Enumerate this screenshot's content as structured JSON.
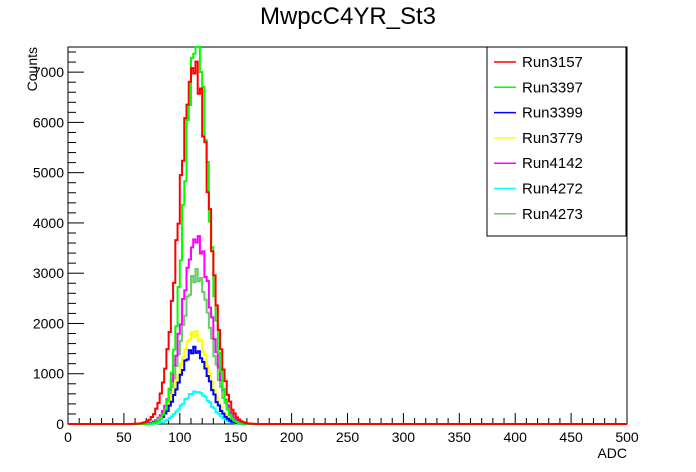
{
  "chart_data": {
    "type": "line",
    "title": "MwpcC4YR_St3",
    "xlabel": "ADC",
    "ylabel": "Counts",
    "xlim": [
      0,
      500
    ],
    "ylim": [
      0,
      7500
    ],
    "x_ticks": [
      0,
      50,
      100,
      150,
      200,
      250,
      300,
      350,
      400,
      450,
      500
    ],
    "y_ticks": [
      0,
      1000,
      2000,
      3000,
      4000,
      5000,
      6000,
      7000
    ],
    "grid": false,
    "legend_position": "top-right",
    "histogram_bin_width": 2,
    "series": [
      {
        "name": "Run3157",
        "color": "#ff0000",
        "peak_x": 113,
        "peak_y": 7100,
        "sigma": 13.5
      },
      {
        "name": "Run3397",
        "color": "#00ff00",
        "peak_x": 115,
        "peak_y": 7600,
        "sigma": 11.0
      },
      {
        "name": "Run3399",
        "color": "#0000ff",
        "peak_x": 113,
        "peak_y": 1480,
        "sigma": 13.0
      },
      {
        "name": "Run3779",
        "color": "#ffff00",
        "peak_x": 113,
        "peak_y": 1800,
        "sigma": 13.0
      },
      {
        "name": "Run4142",
        "color": "#ff00ff",
        "peak_x": 115,
        "peak_y": 3680,
        "sigma": 13.0
      },
      {
        "name": "Run4272",
        "color": "#00ffff",
        "peak_x": 115,
        "peak_y": 640,
        "sigma": 13.0
      },
      {
        "name": "Run4273",
        "color": "#66cc66",
        "peak_x": 115,
        "peak_y": 2970,
        "sigma": 13.0
      }
    ]
  }
}
